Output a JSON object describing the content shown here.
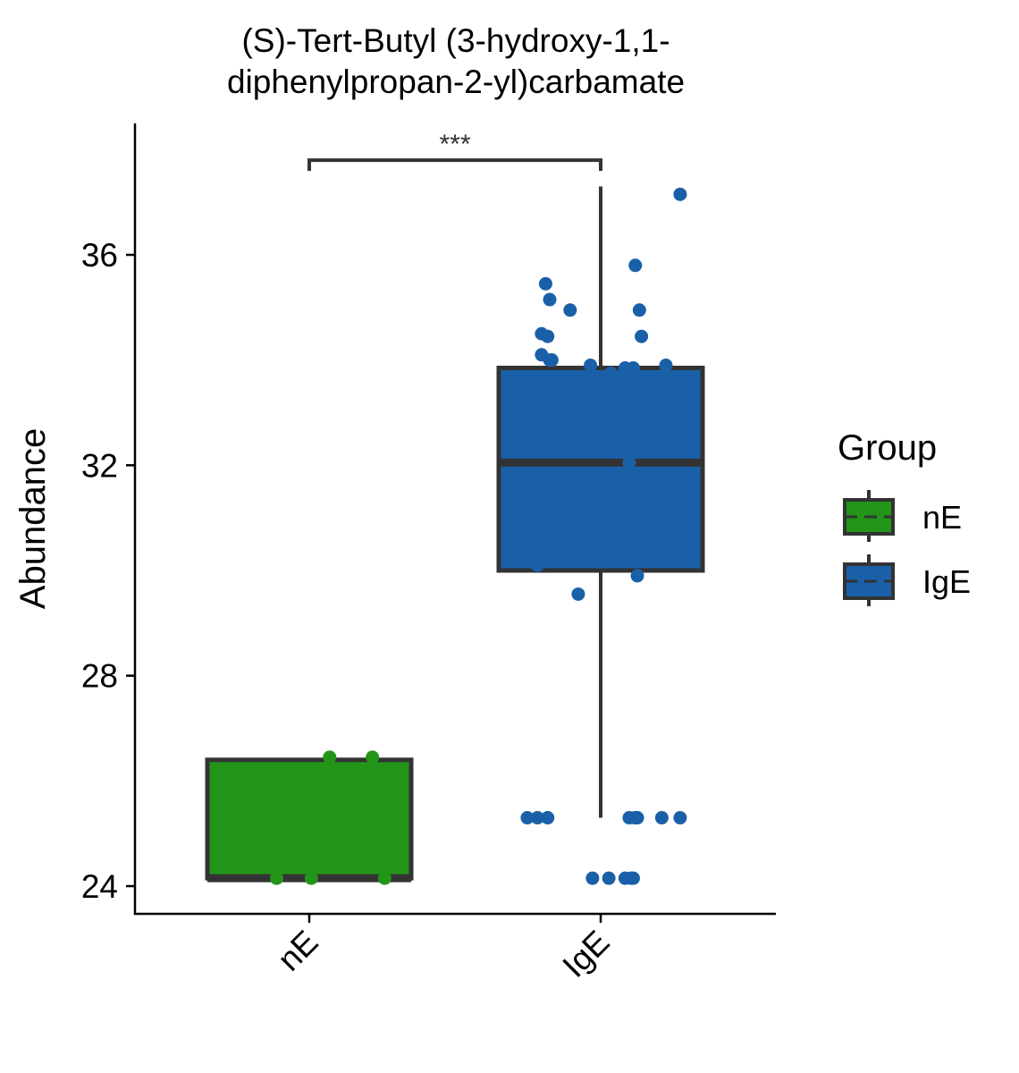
{
  "chart_data": {
    "type": "box",
    "title_lines": [
      "(S)-Tert-Butyl (3-hydroxy-1,1-",
      "diphenylpropan-2-yl)carbamate"
    ],
    "xlabel": "",
    "ylabel": "Abundance",
    "categories": [
      "nE",
      "IgE"
    ],
    "ylim": [
      23.5,
      38.5
    ],
    "yticks": [
      24,
      28,
      32,
      36
    ],
    "grid": false,
    "legend": {
      "title": "Group",
      "position": "right",
      "entries": [
        {
          "label": "nE",
          "color": "#229519"
        },
        {
          "label": "IgE",
          "color": "#1A60A8"
        }
      ]
    },
    "significance": {
      "label": "***",
      "from": "nE",
      "to": "IgE",
      "y": 37.8
    },
    "boxes": [
      {
        "group": "nE",
        "color": "#229519",
        "min": 24.15,
        "q1": 24.15,
        "median": 24.15,
        "q3": 26.4,
        "max": 26.4
      },
      {
        "group": "IgE",
        "color": "#1A60A8",
        "min": 25.3,
        "q1": 30.0,
        "median": 32.05,
        "q3": 33.85,
        "max": 37.3
      }
    ],
    "points": [
      {
        "group": "nE",
        "jitter": [
          -0.16,
          0.01,
          0.1,
          0.31,
          0.37
        ],
        "values": [
          24.15,
          24.15,
          26.45,
          26.45,
          24.15
        ]
      },
      {
        "group": "IgE",
        "jitter": [
          -0.36,
          -0.31,
          -0.29,
          -0.29,
          -0.27,
          -0.26,
          -0.25,
          -0.24,
          -0.25,
          -0.24,
          -0.15,
          -0.11,
          -0.05,
          0.05,
          0.12,
          0.14,
          0.16,
          0.17,
          0.18,
          0.19,
          0.2,
          0.22,
          0.32,
          0.34,
          0.39,
          0.4,
          -0.36,
          -0.31,
          -0.26,
          0.14,
          0.17,
          0.18,
          0.3,
          0.39,
          -0.04,
          0.04,
          0.12,
          0.15,
          0.16
        ],
        "values": [
          33.6,
          30.1,
          34.1,
          34.5,
          35.45,
          34.45,
          35.15,
          34.0,
          34.0,
          34.0,
          34.95,
          29.55,
          33.9,
          33.75,
          33.85,
          32.05,
          33.85,
          35.8,
          29.9,
          34.95,
          34.45,
          33.0,
          33.9,
          32.4,
          37.15,
          32.35,
          25.3,
          25.3,
          25.3,
          25.3,
          25.3,
          25.3,
          25.3,
          25.3,
          24.15,
          24.15,
          24.15,
          24.15,
          24.15
        ]
      }
    ]
  }
}
